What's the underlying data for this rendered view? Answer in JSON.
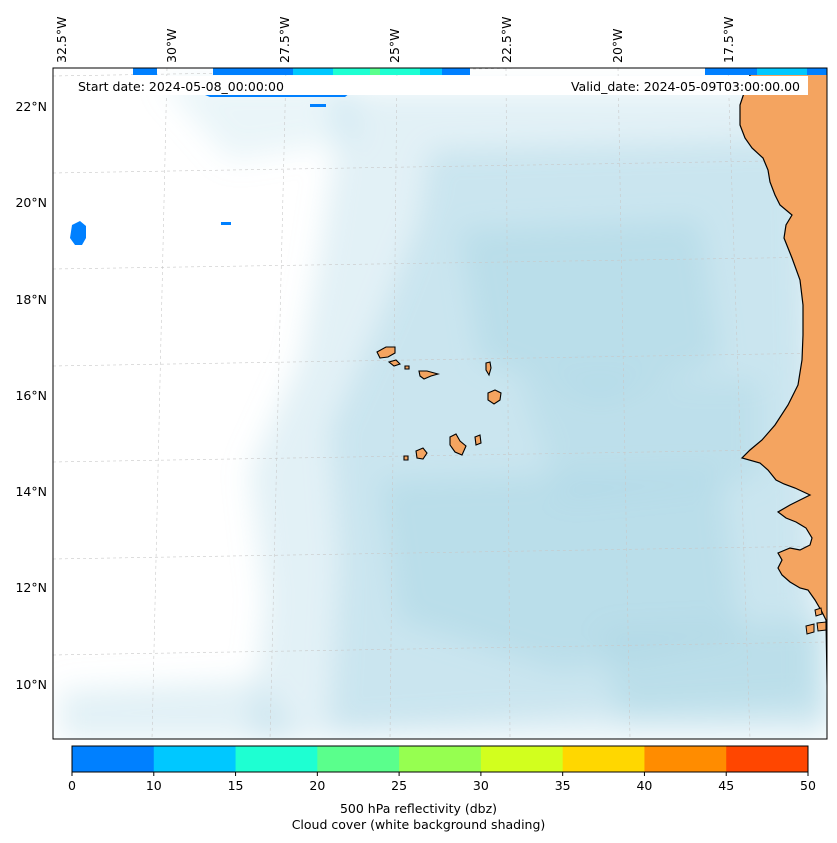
{
  "map": {
    "info": {
      "start_date": "Start date: 2024-05-08_00:00:00",
      "valid_date": "Valid_date: 2024-05-09T03:00:00.00"
    },
    "longitude_labels": [
      "32.5°W",
      "30°W",
      "27.5°W",
      "25°W",
      "22.5°W",
      "20°W",
      "17.5°W"
    ],
    "latitude_labels": [
      "22°N",
      "20°N",
      "18°N",
      "16°N",
      "14°N",
      "12°N",
      "10°N"
    ],
    "colors": {
      "cloud": "#add8e6",
      "land": "#f4a460",
      "coast": "#000000",
      "grid": "#c8c8c8"
    }
  },
  "colorbar": {
    "ticks": [
      "0",
      "10",
      "15",
      "20",
      "25",
      "30",
      "35",
      "40",
      "45",
      "50"
    ],
    "colors": [
      "#0080ff",
      "#00c8ff",
      "#1effd2",
      "#5aff8c",
      "#96ff50",
      "#d2ff1e",
      "#ffd700",
      "#ff8c00",
      "#ff4600"
    ],
    "label_line1": "500 hPa reflectivity (dbz)",
    "label_line2": "Cloud cover (white background shading)"
  }
}
